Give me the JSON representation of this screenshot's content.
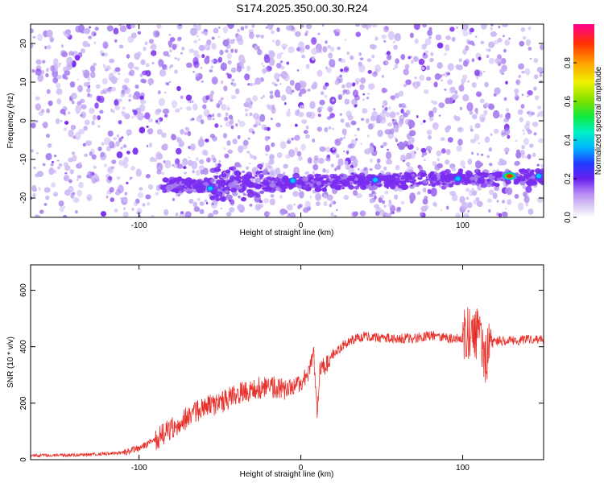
{
  "title": "S174.2025.350.00.30.R24",
  "colors": {
    "snr_line": "#e8302a",
    "speckle_light": "#cbb6f4",
    "speckle_mid": "#a77fee",
    "speckle_dark": "#7a2cf0",
    "ridge_peak": "#00c8ff"
  },
  "chart_data": [
    {
      "type": "heatmap",
      "xlabel": "Height of straight line (km)",
      "ylabel": "Frequency (Hz)",
      "xlim": [
        -167,
        150
      ],
      "ylim": [
        -25,
        25
      ],
      "xticks": [
        -100,
        0,
        100
      ],
      "yticks": [
        -20,
        -10,
        0,
        10,
        20
      ],
      "colorbar": {
        "label": "Normalized spectral amplitude",
        "range": [
          0,
          1
        ],
        "ticks": [
          0.0,
          0.2,
          0.4,
          0.6,
          0.8
        ],
        "tick_labels": [
          "0.0",
          "0.2",
          "0.4",
          "0.6",
          "0.8"
        ],
        "colormap": "rainbow"
      },
      "ridge": {
        "description_values": "dominant frequency band",
        "x_range": [
          -85,
          150
        ],
        "frequency_start": -17,
        "frequency_end": -14.5
      },
      "hot_spots": [
        {
          "x": -56,
          "y": -17.5,
          "value": 0.3
        },
        {
          "x": -5,
          "y": -15.5,
          "value": 0.3
        },
        {
          "x": 46,
          "y": -15.3,
          "value": 0.25
        },
        {
          "x": 97,
          "y": -15.0,
          "value": 0.3
        },
        {
          "x": 129,
          "y": -14.3,
          "value": 0.95
        },
        {
          "x": 147,
          "y": -14.3,
          "value": 0.3
        }
      ],
      "gap": {
        "x_range": [
          129,
          133
        ]
      }
    },
    {
      "type": "line",
      "xlabel": "Height of straight line (km)",
      "ylabel": "SNR (10 * v/v)",
      "xlim": [
        -167,
        150
      ],
      "ylim": [
        0,
        690
      ],
      "xticks": [
        -100,
        0,
        100
      ],
      "yticks": [
        0,
        200,
        400,
        600
      ],
      "series": [
        {
          "x": [
            -167,
            -150,
            -130,
            -110,
            -100,
            -90,
            -80,
            -70,
            -60,
            -50,
            -40,
            -30,
            -20,
            -10,
            0,
            5,
            8,
            10,
            12,
            15,
            20,
            25,
            30,
            40,
            50,
            60,
            70,
            80,
            90,
            100,
            105,
            108,
            110,
            112,
            114,
            116,
            120,
            130,
            140,
            150
          ],
          "values": [
            15,
            15,
            18,
            25,
            40,
            70,
            110,
            150,
            185,
            200,
            230,
            250,
            260,
            250,
            270,
            310,
            380,
            160,
            330,
            330,
            370,
            400,
            420,
            440,
            430,
            430,
            430,
            440,
            430,
            430,
            450,
            450,
            450,
            400,
            350,
            400,
            420,
            420,
            425,
            430
          ]
        }
      ]
    }
  ]
}
